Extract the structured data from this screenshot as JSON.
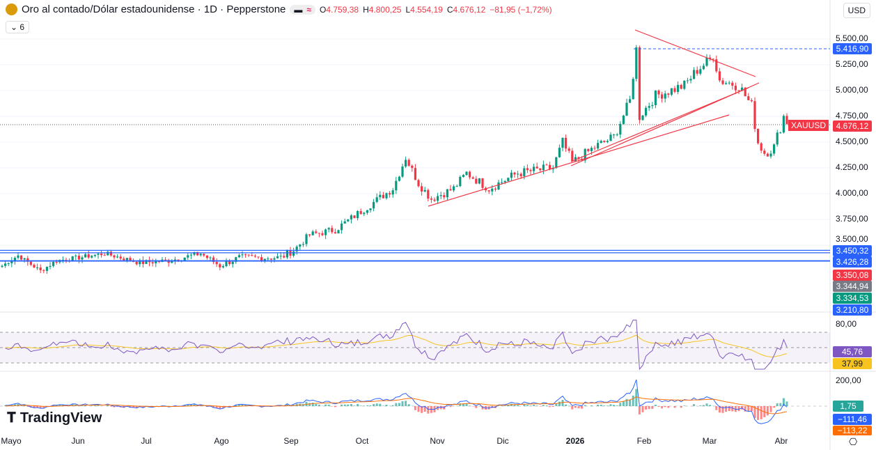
{
  "header": {
    "title": "Oro al contado/Dólar estadounidense · 1D · Pepperstone",
    "o_label": "O",
    "o": "4.759,38",
    "h_label": "H",
    "h": "4.800,25",
    "l_label": "L",
    "l": "4.554,19",
    "c_label": "C",
    "c": "4.676,12",
    "change": "−81,95 (−1,72%)",
    "indicators_toggle": "⌄ 6",
    "currency": "USD"
  },
  "price_axis": [
    "5.500,00",
    "5.250,00",
    "5.000,00",
    "4.750,00",
    "4.500,00",
    "4.250,00",
    "4.000,00",
    "3.750,00",
    "3.500,00"
  ],
  "price_labels": [
    {
      "text": "5.416,90",
      "color": "#2962ff"
    },
    {
      "text": "4.676,12",
      "color": "#f23645"
    },
    {
      "text": "3.450,32",
      "color": "#2962ff"
    },
    {
      "text": "3.426,28",
      "color": "#2962ff"
    },
    {
      "text": "3.350,08",
      "color": "#f23645"
    },
    {
      "text": "3.344,94",
      "color": "#787b86"
    },
    {
      "text": "3.334,53",
      "color": "#089981"
    },
    {
      "text": "3.210,80",
      "color": "#2962ff"
    }
  ],
  "symbol_tag": "XAUUSD",
  "rsi": {
    "axis": "80,00",
    "value": "45,76",
    "ma": "37,99"
  },
  "macd": {
    "axis": "200,00",
    "hist": "1,75",
    "macd": "−111,46",
    "signal": "−113,22"
  },
  "months": [
    "Mayo",
    "Jun",
    "Jul",
    "Ago",
    "Sep",
    "Oct",
    "Nov",
    "Dic",
    "2026",
    "Feb",
    "Mar",
    "Abr"
  ],
  "brand": "TradingView",
  "chart_data": {
    "type": "candlestick",
    "price_path": [
      [
        0,
        3300
      ],
      [
        5,
        3400
      ],
      [
        12,
        3250
      ],
      [
        17,
        3350
      ],
      [
        24,
        3380
      ],
      [
        32,
        3420
      ],
      [
        43,
        3330
      ],
      [
        52,
        3350
      ],
      [
        62,
        3420
      ],
      [
        68,
        3300
      ],
      [
        74,
        3380
      ],
      [
        87,
        3380
      ],
      [
        91,
        3450
      ],
      [
        96,
        3600
      ],
      [
        104,
        3650
      ],
      [
        113,
        3850
      ],
      [
        122,
        4050
      ],
      [
        126,
        4350
      ],
      [
        130,
        4100
      ],
      [
        134,
        3950
      ],
      [
        141,
        4050
      ],
      [
        145,
        4200
      ],
      [
        152,
        4050
      ],
      [
        161,
        4200
      ],
      [
        172,
        4250
      ],
      [
        175,
        4500
      ],
      [
        178,
        4300
      ],
      [
        185,
        4450
      ],
      [
        191,
        4550
      ],
      [
        196,
        4900
      ],
      [
        198,
        5400
      ],
      [
        199,
        4750
      ],
      [
        204,
        4950
      ],
      [
        213,
        5050
      ],
      [
        217,
        5200
      ],
      [
        221,
        5300
      ],
      [
        222,
        5350
      ],
      [
        224,
        5100
      ],
      [
        230,
        5050
      ],
      [
        234,
        4850
      ],
      [
        236,
        4500
      ],
      [
        238,
        4400
      ],
      [
        241,
        4450
      ],
      [
        244,
        4750
      ],
      [
        245,
        4676
      ]
    ],
    "levels": [
      5416.9,
      4676.12,
      3450.32,
      3426.28,
      3350.08,
      3344.94
    ]
  }
}
